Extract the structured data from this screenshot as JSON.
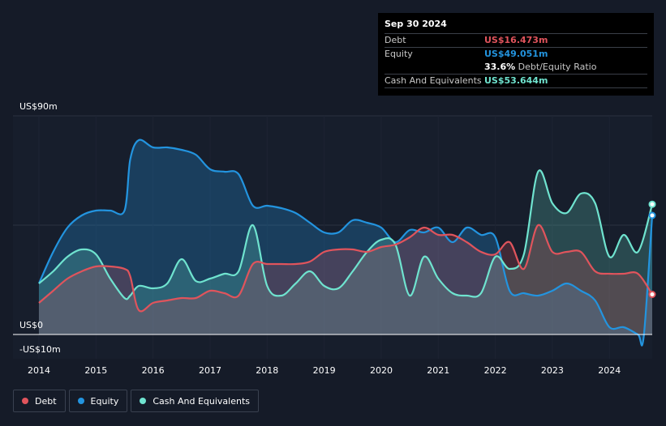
{
  "colors": {
    "debt": "#e0545c",
    "equity": "#2394df",
    "cash": "#6fe3cf",
    "background": "#151b28"
  },
  "tooltip": {
    "date": "Sep 30 2024",
    "rows": [
      {
        "label": "Debt",
        "value": "US$16.473m",
        "color": "#e0545c"
      },
      {
        "label": "Equity",
        "value": "US$49.051m",
        "color": "#2394df"
      },
      {
        "label": "",
        "value": "33.6%",
        "suffix": "Debt/Equity Ratio",
        "color": "#ffffff"
      },
      {
        "label": "Cash And Equivalents",
        "value": "US$53.644m",
        "color": "#6fe3cf"
      }
    ]
  },
  "legend": [
    {
      "label": "Debt",
      "color": "#e0545c"
    },
    {
      "label": "Equity",
      "color": "#2394df"
    },
    {
      "label": "Cash And Equivalents",
      "color": "#6fe3cf"
    }
  ],
  "chart_data": {
    "type": "area",
    "xlim": [
      2014,
      2024.75
    ],
    "ylim": [
      -10,
      90
    ],
    "y_tick_labels": [
      {
        "value": 90,
        "label": "US$90m"
      },
      {
        "value": 0,
        "label": "US$0"
      },
      {
        "value": -10,
        "label": "-US$10m"
      }
    ],
    "x_ticks": [
      2014,
      2015,
      2016,
      2017,
      2018,
      2019,
      2020,
      2021,
      2022,
      2023,
      2024
    ],
    "x_tick_labels": [
      "2014",
      "2015",
      "2016",
      "2017",
      "2018",
      "2019",
      "2020",
      "2021",
      "2022",
      "2023",
      "2024"
    ],
    "grid": true,
    "legend_position": "bottom-left",
    "series": [
      {
        "name": "Debt",
        "color": "#e0545c",
        "x": [
          2014,
          2014.25,
          2014.5,
          2014.75,
          2015,
          2015.25,
          2015.5,
          2015.6,
          2015.75,
          2016,
          2016.25,
          2016.5,
          2016.75,
          2017,
          2017.25,
          2017.5,
          2017.75,
          2018,
          2018.25,
          2018.5,
          2018.75,
          2019,
          2019.25,
          2019.5,
          2019.75,
          2020,
          2020.25,
          2020.5,
          2020.75,
          2021,
          2021.25,
          2021.5,
          2021.75,
          2022,
          2022.25,
          2022.5,
          2022.75,
          2023,
          2023.25,
          2023.5,
          2023.75,
          2024,
          2024.25,
          2024.5,
          2024.75
        ],
        "y": [
          13,
          18,
          23,
          26,
          28,
          28,
          27,
          24,
          10,
          13,
          14,
          15,
          15,
          18,
          17,
          16,
          29,
          29,
          29,
          29,
          30,
          34,
          35,
          35,
          34,
          36,
          37,
          40,
          44,
          41,
          41,
          38,
          34,
          33,
          38,
          27,
          45,
          34,
          34,
          34,
          26,
          25,
          25,
          25,
          16.5
        ]
      },
      {
        "name": "Equity",
        "color": "#2394df",
        "x": [
          2014,
          2014.25,
          2014.5,
          2014.75,
          2015,
          2015.25,
          2015.5,
          2015.6,
          2015.75,
          2016,
          2016.25,
          2016.5,
          2016.75,
          2017,
          2017.25,
          2017.5,
          2017.75,
          2018,
          2018.25,
          2018.5,
          2018.75,
          2019,
          2019.25,
          2019.5,
          2019.75,
          2020,
          2020.25,
          2020.5,
          2020.75,
          2021,
          2021.25,
          2021.5,
          2021.75,
          2022,
          2022.25,
          2022.5,
          2022.75,
          2023,
          2023.25,
          2023.5,
          2023.75,
          2024,
          2024.25,
          2024.5,
          2024.6,
          2024.75
        ],
        "y": [
          21,
          34,
          44,
          49,
          51,
          51,
          51,
          72,
          80,
          77,
          77,
          76,
          74,
          68,
          67,
          66,
          53,
          53,
          52,
          50,
          46,
          42,
          42,
          47,
          46,
          44,
          38,
          43,
          42,
          44,
          38,
          44,
          41,
          40,
          18,
          17,
          16,
          18,
          21,
          18,
          14,
          3,
          3,
          0,
          -1,
          49
        ]
      },
      {
        "name": "Cash And Equivalents",
        "color": "#6fe3cf",
        "x": [
          2014,
          2014.25,
          2014.5,
          2014.75,
          2015,
          2015.25,
          2015.5,
          2015.6,
          2015.75,
          2016,
          2016.25,
          2016.5,
          2016.75,
          2017,
          2017.25,
          2017.5,
          2017.75,
          2018,
          2018.25,
          2018.5,
          2018.75,
          2019,
          2019.25,
          2019.5,
          2019.75,
          2020,
          2020.25,
          2020.5,
          2020.75,
          2021,
          2021.25,
          2021.5,
          2021.75,
          2022,
          2022.25,
          2022.5,
          2022.75,
          2023,
          2023.25,
          2023.5,
          2023.75,
          2024,
          2024.25,
          2024.5,
          2024.75
        ],
        "y": [
          21,
          26,
          32,
          35,
          33,
          23,
          15,
          16,
          20,
          19,
          21,
          31,
          22,
          23,
          25,
          26,
          45,
          20,
          16,
          21,
          26,
          20,
          19,
          26,
          34,
          39,
          37,
          16,
          32,
          23,
          17,
          16,
          17,
          32,
          27,
          33,
          67,
          54,
          50,
          58,
          54,
          32,
          41,
          34,
          53.6
        ]
      }
    ]
  }
}
